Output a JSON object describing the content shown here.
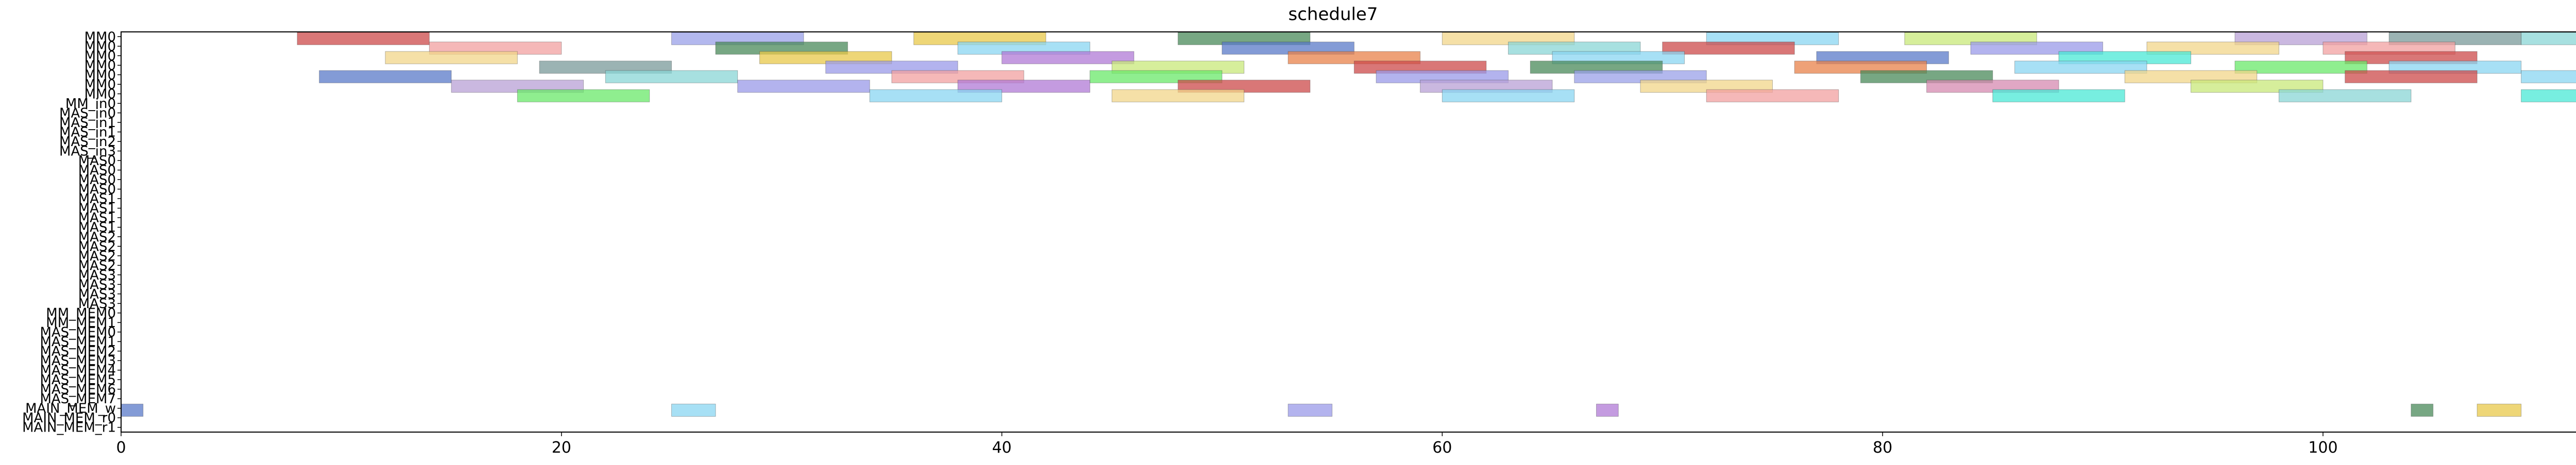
{
  "chart_data": {
    "type": "gantt",
    "title": "schedule7",
    "xlabel": "",
    "ylabel": "",
    "xlim": [
      0,
      115
    ],
    "x_ticks": [
      0,
      20,
      40,
      60,
      80,
      100
    ],
    "grid": false,
    "legend": "none",
    "rows": [
      "MM0",
      "MM0",
      "MM0",
      "MM0",
      "MM0",
      "MM0",
      "MM0",
      "MM_in0",
      "MAS_in0",
      "MAS_in1",
      "MAS_in1",
      "MAS_in2",
      "MAS_in3",
      "MAS0",
      "MAS0",
      "MAS0",
      "MAS0",
      "MAS1",
      "MAS1",
      "MAS1",
      "MAS1",
      "MAS2",
      "MAS2",
      "MAS2",
      "MAS2",
      "MAS3",
      "MAS3",
      "MAS3",
      "MAS3",
      "MM_MEM0",
      "MM_MEM1",
      "MAS_MEM0",
      "MAS_MEM1",
      "MAS_MEM2",
      "MAS_MEM3",
      "MAS_MEM4",
      "MAS_MEM5",
      "MAS_MEM6",
      "MAS_MEM7",
      "MAIN_MEM_w",
      "MAIN_MEM_r0",
      "MAIN_MEM_r1"
    ],
    "palette": [
      "#cc4a4a",
      "#f2a0a0",
      "#e8c84a",
      "#9a9ae8",
      "#5a7ac8",
      "#6ae86a",
      "#8ad6d6",
      "#e85ae8",
      "#b07ad6",
      "#e8824a",
      "#4a8a5a",
      "#c8e87a",
      "#8ad6f2",
      "#b8a0d6",
      "#7a9a9a",
      "#f2d68a",
      "#4ae8d6",
      "#d68ab0",
      "#9aa0e8",
      "#e84a6a"
    ],
    "tasks": [
      {
        "row": 0,
        "start": 8.0,
        "end": 14.0,
        "color": 0
      },
      {
        "row": 0,
        "start": 25.0,
        "end": 31.0,
        "color": 18
      },
      {
        "row": 0,
        "start": 36.0,
        "end": 42.0,
        "color": 2
      },
      {
        "row": 0,
        "start": 48.0,
        "end": 54.0,
        "color": 10
      },
      {
        "row": 0,
        "start": 60.0,
        "end": 66.0,
        "color": 15
      },
      {
        "row": 0,
        "start": 72.0,
        "end": 78.0,
        "color": 12
      },
      {
        "row": 0,
        "start": 81.0,
        "end": 87.0,
        "color": 11
      },
      {
        "row": 0,
        "start": 96.0,
        "end": 102.0,
        "color": 13
      },
      {
        "row": 0,
        "start": 103.0,
        "end": 109.0,
        "color": 14
      },
      {
        "row": 0,
        "start": 109.0,
        "end": 115.0,
        "color": 6
      },
      {
        "row": 1,
        "start": 14.0,
        "end": 20.0,
        "color": 1
      },
      {
        "row": 1,
        "start": 27.0,
        "end": 33.0,
        "color": 10
      },
      {
        "row": 1,
        "start": 38.0,
        "end": 44.0,
        "color": 12
      },
      {
        "row": 1,
        "start": 50.0,
        "end": 56.0,
        "color": 4
      },
      {
        "row": 1,
        "start": 63.0,
        "end": 69.0,
        "color": 6
      },
      {
        "row": 1,
        "start": 70.0,
        "end": 76.0,
        "color": 0
      },
      {
        "row": 1,
        "start": 84.0,
        "end": 90.0,
        "color": 3
      },
      {
        "row": 1,
        "start": 92.0,
        "end": 98.0,
        "color": 15
      },
      {
        "row": 1,
        "start": 100.0,
        "end": 106.0,
        "color": 1
      },
      {
        "row": 2,
        "start": 12.0,
        "end": 18.0,
        "color": 15
      },
      {
        "row": 2,
        "start": 29.0,
        "end": 35.0,
        "color": 2
      },
      {
        "row": 2,
        "start": 40.0,
        "end": 46.0,
        "color": 8
      },
      {
        "row": 2,
        "start": 53.0,
        "end": 59.0,
        "color": 9
      },
      {
        "row": 2,
        "start": 65.0,
        "end": 71.0,
        "color": 12
      },
      {
        "row": 2,
        "start": 77.0,
        "end": 83.0,
        "color": 4
      },
      {
        "row": 2,
        "start": 88.0,
        "end": 94.0,
        "color": 16
      },
      {
        "row": 2,
        "start": 101.0,
        "end": 107.0,
        "color": 0
      },
      {
        "row": 3,
        "start": 19.0,
        "end": 25.0,
        "color": 14
      },
      {
        "row": 3,
        "start": 32.0,
        "end": 38.0,
        "color": 3
      },
      {
        "row": 3,
        "start": 45.0,
        "end": 51.0,
        "color": 11
      },
      {
        "row": 3,
        "start": 56.0,
        "end": 62.0,
        "color": 0
      },
      {
        "row": 3,
        "start": 64.0,
        "end": 70.0,
        "color": 10
      },
      {
        "row": 3,
        "start": 76.0,
        "end": 82.0,
        "color": 9
      },
      {
        "row": 3,
        "start": 86.0,
        "end": 92.0,
        "color": 12
      },
      {
        "row": 3,
        "start": 96.0,
        "end": 102.0,
        "color": 5
      },
      {
        "row": 3,
        "start": 103.0,
        "end": 109.0,
        "color": 12
      },
      {
        "row": 4,
        "start": 9.0,
        "end": 15.0,
        "color": 4
      },
      {
        "row": 4,
        "start": 22.0,
        "end": 28.0,
        "color": 6
      },
      {
        "row": 4,
        "start": 35.0,
        "end": 41.0,
        "color": 1
      },
      {
        "row": 4,
        "start": 44.0,
        "end": 50.0,
        "color": 5
      },
      {
        "row": 4,
        "start": 57.0,
        "end": 63.0,
        "color": 3
      },
      {
        "row": 4,
        "start": 66.0,
        "end": 72.0,
        "color": 18
      },
      {
        "row": 4,
        "start": 79.0,
        "end": 85.0,
        "color": 10
      },
      {
        "row": 4,
        "start": 91.0,
        "end": 97.0,
        "color": 15
      },
      {
        "row": 4,
        "start": 101.0,
        "end": 107.0,
        "color": 0
      },
      {
        "row": 4,
        "start": 109.0,
        "end": 114.0,
        "color": 12
      },
      {
        "row": 5,
        "start": 15.0,
        "end": 21.0,
        "color": 13
      },
      {
        "row": 5,
        "start": 28.0,
        "end": 34.0,
        "color": 3
      },
      {
        "row": 5,
        "start": 38.0,
        "end": 44.0,
        "color": 8
      },
      {
        "row": 5,
        "start": 48.0,
        "end": 54.0,
        "color": 0
      },
      {
        "row": 5,
        "start": 59.0,
        "end": 65.0,
        "color": 13
      },
      {
        "row": 5,
        "start": 69.0,
        "end": 75.0,
        "color": 15
      },
      {
        "row": 5,
        "start": 82.0,
        "end": 88.0,
        "color": 17
      },
      {
        "row": 5,
        "start": 94.0,
        "end": 100.0,
        "color": 11
      },
      {
        "row": 6,
        "start": 18.0,
        "end": 24.0,
        "color": 5
      },
      {
        "row": 6,
        "start": 34.0,
        "end": 40.0,
        "color": 12
      },
      {
        "row": 6,
        "start": 45.0,
        "end": 51.0,
        "color": 15
      },
      {
        "row": 6,
        "start": 60.0,
        "end": 66.0,
        "color": 12
      },
      {
        "row": 6,
        "start": 72.0,
        "end": 78.0,
        "color": 1
      },
      {
        "row": 6,
        "start": 85.0,
        "end": 91.0,
        "color": 16
      },
      {
        "row": 6,
        "start": 98.0,
        "end": 104.0,
        "color": 6
      },
      {
        "row": 6,
        "start": 109.0,
        "end": 115.0,
        "color": 16
      },
      {
        "row": 39,
        "start": 0.0,
        "end": 1.0,
        "color": 4
      },
      {
        "row": 39,
        "start": 25.0,
        "end": 27.0,
        "color": 12
      },
      {
        "row": 39,
        "start": 53.0,
        "end": 55.0,
        "color": 3
      },
      {
        "row": 39,
        "start": 67.0,
        "end": 68.0,
        "color": 8
      },
      {
        "row": 39,
        "start": 104.0,
        "end": 105.0,
        "color": 10
      },
      {
        "row": 39,
        "start": 107.0,
        "end": 109.0,
        "color": 2
      }
    ]
  }
}
